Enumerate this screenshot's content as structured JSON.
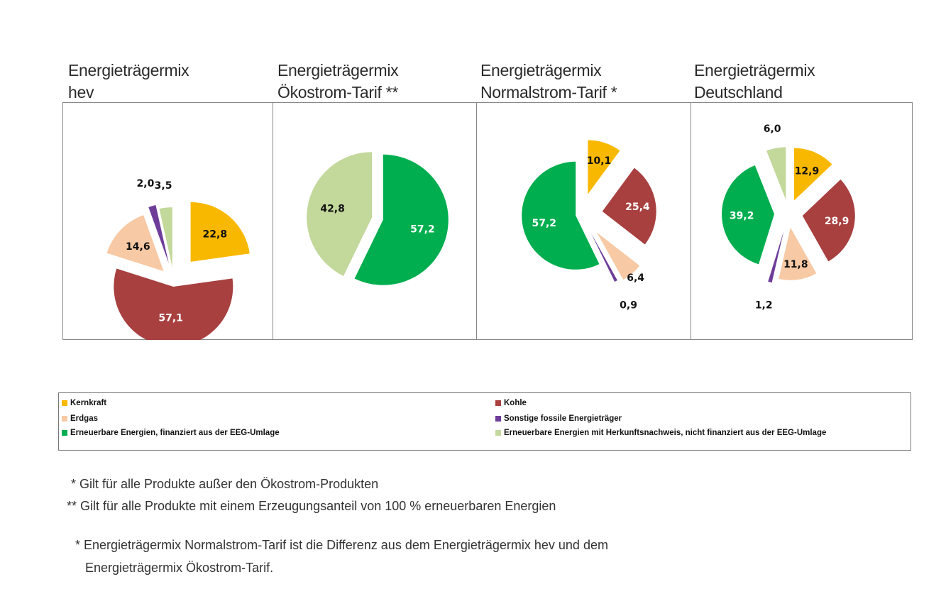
{
  "colors": {
    "kernkraft": "#F9B800",
    "kohle": "#A8403F",
    "erdgas": "#F7C9A4",
    "sonstige": "#6E3D9A",
    "eeg": "#00AE4F",
    "herkunft": "#C3D89B"
  },
  "legend": [
    {
      "key": "kernkraft",
      "label": "Kernkraft"
    },
    {
      "key": "kohle",
      "label": "Kohle"
    },
    {
      "key": "erdgas",
      "label": "Erdgas"
    },
    {
      "key": "sonstige",
      "label": "Sonstige fossile Energieträger"
    },
    {
      "key": "eeg",
      "label": "Erneuerbare Energien, finanziert aus der EEG-Umlage"
    },
    {
      "key": "herkunft",
      "label": "Erneuerbare Energien mit Herkunftsnachweis, nicht finanziert aus der EEG-Umlage"
    }
  ],
  "chart_data": [
    {
      "type": "pie",
      "title_lines": [
        "Energieträgermix",
        "hev"
      ],
      "slices": [
        {
          "key": "kernkraft",
          "value": 22.8,
          "label": "22,8"
        },
        {
          "key": "kohle",
          "value": 57.1,
          "label": "57,1"
        },
        {
          "key": "erdgas",
          "value": 14.6,
          "label": "14,6"
        },
        {
          "key": "sonstige",
          "value": 2.0,
          "label": "2,0"
        },
        {
          "key": "herkunft",
          "value": 3.5,
          "label": "3,5"
        }
      ]
    },
    {
      "type": "pie",
      "title_lines": [
        "Energieträgermix",
        "Ökostrom-Tarif **"
      ],
      "slices": [
        {
          "key": "eeg",
          "value": 57.2,
          "label": "57,2"
        },
        {
          "key": "herkunft",
          "value": 42.8,
          "label": "42,8"
        }
      ]
    },
    {
      "type": "pie",
      "title_lines": [
        "Energieträgermix",
        "Normalstrom-Tarif *"
      ],
      "slices": [
        {
          "key": "kernkraft",
          "value": 10.1,
          "label": "10,1"
        },
        {
          "key": "kohle",
          "value": 25.4,
          "label": "25,4"
        },
        {
          "key": "erdgas",
          "value": 6.4,
          "label": "6,4"
        },
        {
          "key": "sonstige",
          "value": 0.9,
          "label": "0,9"
        },
        {
          "key": "eeg",
          "value": 57.2,
          "label": "57,2"
        }
      ]
    },
    {
      "type": "pie",
      "title_lines": [
        "Energieträgermix",
        "Deutschland"
      ],
      "slices": [
        {
          "key": "kernkraft",
          "value": 12.9,
          "label": "12,9"
        },
        {
          "key": "kohle",
          "value": 28.9,
          "label": "28,9"
        },
        {
          "key": "erdgas",
          "value": 11.8,
          "label": "11,8"
        },
        {
          "key": "sonstige",
          "value": 1.2,
          "label": "1,2"
        },
        {
          "key": "eeg",
          "value": 39.2,
          "label": "39,2"
        },
        {
          "key": "herkunft",
          "value": 6.0,
          "label": "6,0"
        }
      ]
    }
  ],
  "notes": [
    "* Gilt für alle Produkte außer den Ökostrom-Produkten",
    "** Gilt für alle Produkte mit einem Erzeugungsanteil von 100 % erneuerbaren Energien",
    "* Energieträgermix Normalstrom-Tarif ist die Differenz aus dem Energieträgermix hev und dem",
    "Energieträgermix Ökostrom-Tarif."
  ]
}
